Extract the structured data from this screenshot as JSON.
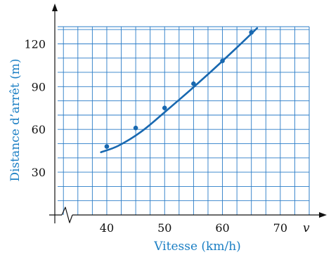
{
  "chart_data": {
    "type": "scatter",
    "xlabel": "Vitesse (km/h)",
    "ylabel": "Distance d’arrêt (m)",
    "x_axis_symbol": "v",
    "x_ticks": [
      40,
      50,
      60,
      70
    ],
    "y_ticks": [
      30,
      60,
      90,
      120
    ],
    "xlim": [
      31.5,
      75
    ],
    "ylim": [
      0,
      132
    ],
    "axis_break": "x",
    "grid": true,
    "grid_step": {
      "x": 2.5,
      "y": 10
    },
    "points": [
      {
        "x": 40,
        "y": 48
      },
      {
        "x": 45,
        "y": 61
      },
      {
        "x": 50,
        "y": 75
      },
      {
        "x": 55,
        "y": 92
      },
      {
        "x": 60,
        "y": 108
      },
      {
        "x": 65,
        "y": 128
      }
    ],
    "fit_curve": [
      {
        "x": 39,
        "y": 44
      },
      {
        "x": 42,
        "y": 48.5
      },
      {
        "x": 46,
        "y": 58.5
      },
      {
        "x": 50,
        "y": 72
      },
      {
        "x": 54,
        "y": 86
      },
      {
        "x": 58,
        "y": 100.5
      },
      {
        "x": 62,
        "y": 115.5
      },
      {
        "x": 66,
        "y": 131
      }
    ],
    "colors": {
      "grid": "#2a7cc7",
      "marker": "#1868b0",
      "curve": "#1868b0",
      "axis": "#111111",
      "axis_title": "#1b7fc4"
    }
  }
}
